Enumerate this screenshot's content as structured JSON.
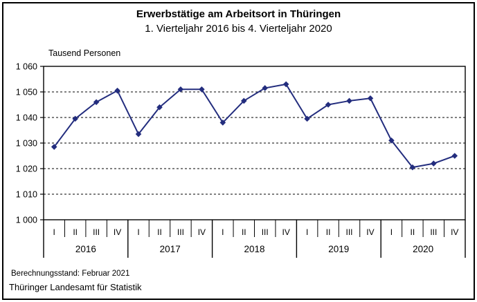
{
  "chart_data": {
    "type": "line",
    "title": "Erwerbstätige am Arbeitsort in Thüringen",
    "subtitle": "1. Vierteljahr 2016 bis 4. Vierteljahr 2020",
    "ylabel": "Tausend Personen",
    "xlabel": "",
    "ylim": [
      1000,
      1060
    ],
    "grid": "horizontal-dashed",
    "legend_position": "none",
    "line_color": "#232D7E",
    "marker": "diamond",
    "years": [
      "2016",
      "2017",
      "2018",
      "2019",
      "2020"
    ],
    "quarters": [
      "I",
      "II",
      "III",
      "IV"
    ],
    "yticks": [
      {
        "value": 1000,
        "label": "1 000"
      },
      {
        "value": 1010,
        "label": "1 010"
      },
      {
        "value": 1020,
        "label": "1 020"
      },
      {
        "value": 1030,
        "label": "1 030"
      },
      {
        "value": 1040,
        "label": "1 040"
      },
      {
        "value": 1050,
        "label": "1 050"
      },
      {
        "value": 1060,
        "label": "1 060"
      }
    ],
    "series": [
      {
        "name": "Erwerbstätige am Arbeitsort",
        "color": "#232D7E",
        "values": [
          1028.5,
          1039.5,
          1046,
          1050.5,
          1033.5,
          1044,
          1051,
          1051,
          1038,
          1046.5,
          1051.5,
          1053,
          1039.5,
          1045,
          1046.5,
          1047.5,
          1031,
          1020.5,
          1022,
          1025
        ]
      }
    ]
  },
  "footer": {
    "line1": "Berechnungsstand: Februar 2021",
    "line2": "Thüringer Landesamt für Statistik"
  }
}
